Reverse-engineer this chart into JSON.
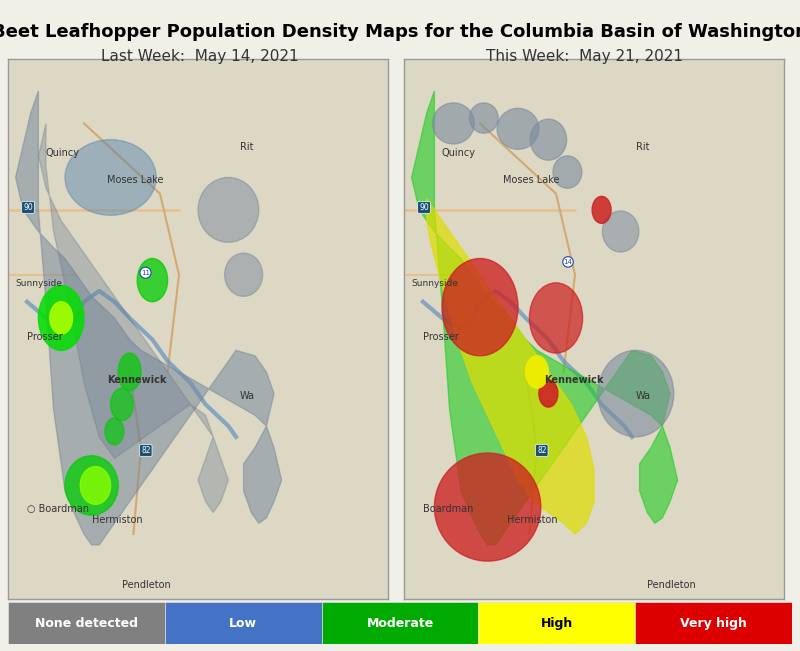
{
  "title": "Beet Leafhopper Population Density Maps for the Columbia Basin of Washington",
  "subtitle_left": "Last Week:  May 14, 2021",
  "subtitle_right": "This Week:  May 21, 2021",
  "title_fontsize": 13,
  "subtitle_fontsize": 11,
  "legend_items": [
    {
      "label": "None detected",
      "color": "#808080"
    },
    {
      "label": "Low",
      "color": "#4472C4"
    },
    {
      "label": "Moderate",
      "color": "#00AA00"
    },
    {
      "label": "High",
      "color": "#FFFF00"
    },
    {
      "label": "Very high",
      "color": "#DD0000"
    }
  ],
  "legend_text_colors": [
    "#ffffff",
    "#ffffff",
    "#ffffff",
    "#000000",
    "#ffffff"
  ],
  "bg_color": "#f0f0e8",
  "map_bg": "#ddd8c4",
  "title_color": "#000000",
  "subtitle_color": "#333333",
  "gray": "#7a8a9e",
  "river_color": "#6090c0",
  "road_color1": "#e8c090",
  "road_color2": "#d4a870"
}
